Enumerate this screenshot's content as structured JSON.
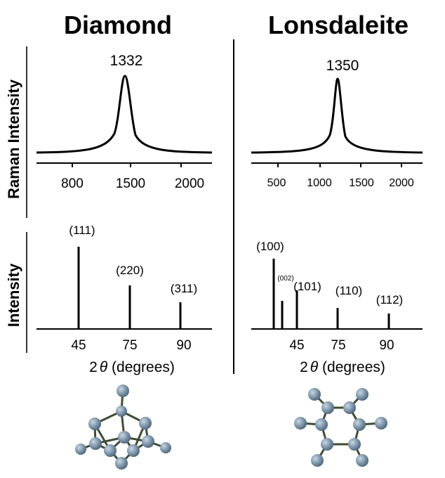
{
  "colors": {
    "line": "#000000",
    "atom": "#7f97ac",
    "atom_highlight": "#c9d6e1",
    "atom_shade": "#4d6478",
    "bond": "#3f4c35"
  },
  "axes": {
    "raman_ylabel": "Raman Intensity",
    "xrd_ylabel": "Intensity"
  },
  "panels": {
    "diamond": {
      "title": "Diamond",
      "raman": {
        "peak_label": "1332",
        "ticks": [
          "800",
          "1500",
          "2000"
        ]
      },
      "xrd": {
        "ticks": [
          "45",
          "75",
          "90"
        ],
        "peaks": [
          {
            "label": "(111)"
          },
          {
            "label": "(220)"
          },
          {
            "label": "(311)"
          }
        ],
        "xlabel_prefix": "2",
        "xlabel_theta": "θ",
        "xlabel_suffix": " (degrees)"
      }
    },
    "lonsdaleite": {
      "title": "Lonsdaleite",
      "raman": {
        "peak_label": "1350",
        "ticks": [
          "500",
          "1000",
          "1500",
          "2000"
        ]
      },
      "xrd": {
        "ticks": [
          "45",
          "75",
          "90"
        ],
        "peaks": [
          {
            "label": "(100)"
          },
          {
            "label": "(002)"
          },
          {
            "label": "(101)"
          },
          {
            "label": "(110)"
          },
          {
            "label": "(112)"
          }
        ],
        "xlabel_prefix": "2",
        "xlabel_theta": "θ",
        "xlabel_suffix": " (degrees)"
      }
    }
  }
}
